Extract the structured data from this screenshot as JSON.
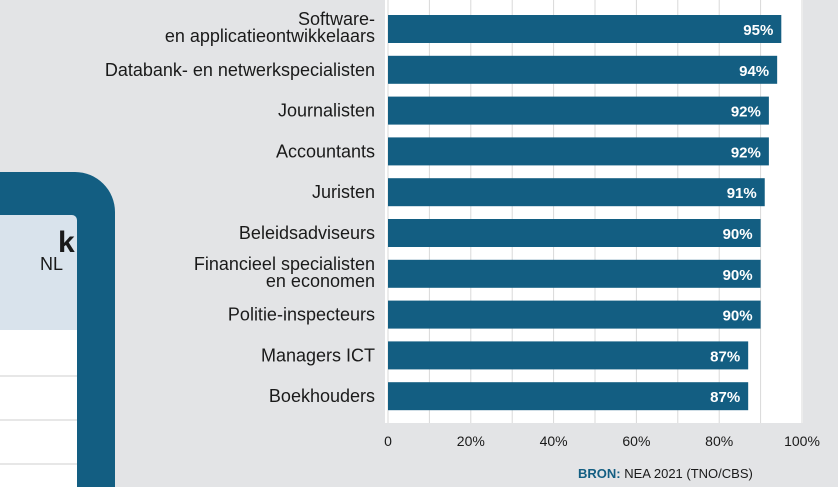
{
  "chart_data": {
    "type": "bar",
    "orientation": "horizontal",
    "categories": [
      "Software- en applicatieontwikkelaars",
      "Databank- en netwerkspecialisten",
      "Journalisten",
      "Accountants",
      "Juristen",
      "Beleidsadviseurs",
      "Financieel specialisten en economen",
      "Politie-inspecteurs",
      "Managers ICT",
      "Boekhouders"
    ],
    "values": [
      95,
      94,
      92,
      92,
      91,
      90,
      90,
      90,
      87,
      87
    ],
    "value_labels": [
      "95%",
      "94%",
      "92%",
      "92%",
      "91%",
      "90%",
      "90%",
      "90%",
      "87%",
      "87%"
    ],
    "xticks": [
      "0",
      "20%",
      "40%",
      "60%",
      "80%",
      "100%"
    ],
    "xlim": [
      0,
      100
    ],
    "grid": true,
    "bar_color": "#135e82",
    "source_label": "BRON:",
    "source_text": "NEA 2021 (TNO/CBS)"
  }
}
